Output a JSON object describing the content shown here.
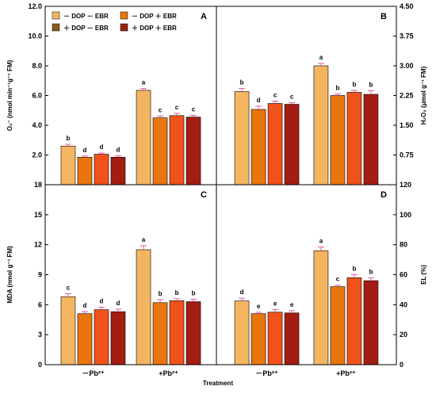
{
  "chart_data": [
    {
      "panel": "A",
      "type": "bar",
      "ylabel": "O₂⁻ (nmol min⁻¹g⁻¹ FM)",
      "ylim": [
        0,
        12
      ],
      "yticks": [
        "2.0",
        "4.0",
        "6.0",
        "8.0",
        "10.0",
        "12.0"
      ],
      "ytick_values": [
        2,
        4,
        6,
        8,
        10,
        12
      ],
      "categories": [
        "－Pb²⁺",
        "+Pb²⁺"
      ],
      "series": [
        {
          "name": "－DOP－EBR",
          "values": [
            2.6,
            6.35
          ],
          "errors": [
            0.12,
            0.12
          ],
          "letters": [
            "b",
            "a"
          ]
        },
        {
          "name": "－DOP＋EBR",
          "values": [
            1.85,
            4.5
          ],
          "errors": [
            0.08,
            0.12
          ],
          "letters": [
            "d",
            "c"
          ]
        },
        {
          "name": "＋DOP－EBR",
          "values": [
            2.05,
            4.65
          ],
          "errors": [
            0.08,
            0.15
          ],
          "letters": [
            "d",
            "c"
          ]
        },
        {
          "name": "＋DOP＋EBR",
          "values": [
            1.85,
            4.55
          ],
          "errors": [
            0.1,
            0.12
          ],
          "letters": [
            "d",
            "c"
          ]
        }
      ]
    },
    {
      "panel": "B",
      "type": "bar",
      "ylabel": "H₂O₂ (μmol g⁻¹ FM)",
      "ylim": [
        0,
        4.5
      ],
      "yticks": [
        "0.75",
        "1.50",
        "2.25",
        "3.00",
        "3.75",
        "4.50"
      ],
      "ytick_values": [
        0.75,
        1.5,
        2.25,
        3.0,
        3.75,
        4.5
      ],
      "categories": [
        "－Pb²⁺",
        "+Pb²⁺"
      ],
      "series": [
        {
          "name": "－DOP－EBR",
          "values": [
            2.35,
            3.0
          ],
          "errors": [
            0.08,
            0.06
          ],
          "letters": [
            "b",
            "a"
          ]
        },
        {
          "name": "－DOP＋EBR",
          "values": [
            1.9,
            2.25
          ],
          "errors": [
            0.08,
            0.04
          ],
          "letters": [
            "d",
            "b"
          ]
        },
        {
          "name": "＋DOP－EBR",
          "values": [
            2.05,
            2.33
          ],
          "errors": [
            0.06,
            0.05
          ],
          "letters": [
            "c",
            "b"
          ]
        },
        {
          "name": "＋DOP＋EBR",
          "values": [
            2.03,
            2.28
          ],
          "errors": [
            0.04,
            0.09
          ],
          "letters": [
            "c",
            "b"
          ]
        }
      ]
    },
    {
      "panel": "C",
      "type": "bar",
      "ylabel": "MDA (nmol g⁻¹ FM)",
      "ylim": [
        0,
        18
      ],
      "yticks": [
        "0",
        "3",
        "6",
        "9",
        "12",
        "15",
        "18"
      ],
      "ytick_values": [
        0,
        3,
        6,
        9,
        12,
        15,
        18
      ],
      "xlabel": "Treatment",
      "categories": [
        "－Pb²⁺",
        "+Pb²⁺"
      ],
      "series": [
        {
          "name": "－DOP－EBR",
          "values": [
            6.8,
            11.5
          ],
          "errors": [
            0.3,
            0.4
          ],
          "letters": [
            "c",
            "a"
          ]
        },
        {
          "name": "－DOP＋EBR",
          "values": [
            5.1,
            6.2
          ],
          "errors": [
            0.2,
            0.3
          ],
          "letters": [
            "d",
            "b"
          ]
        },
        {
          "name": "＋DOP－EBR",
          "values": [
            5.5,
            6.4
          ],
          "errors": [
            0.25,
            0.2
          ],
          "letters": [
            "d",
            "b"
          ]
        },
        {
          "name": "＋DOP＋EBR",
          "values": [
            5.3,
            6.3
          ],
          "errors": [
            0.25,
            0.25
          ],
          "letters": [
            "d",
            "b"
          ]
        }
      ]
    },
    {
      "panel": "D",
      "type": "bar",
      "ylabel": "EL (%)",
      "ylim": [
        0,
        120
      ],
      "yticks": [
        "0",
        "20",
        "40",
        "60",
        "80",
        "100",
        "120"
      ],
      "ytick_values": [
        0,
        20,
        40,
        60,
        80,
        100,
        120
      ],
      "categories": [
        "－Pb²⁺",
        "+Pb²⁺"
      ],
      "series": [
        {
          "name": "－DOP－EBR",
          "values": [
            42.5,
            76
          ],
          "errors": [
            1.8,
            2.5
          ],
          "letters": [
            "d",
            "a"
          ]
        },
        {
          "name": "－DOP＋EBR",
          "values": [
            34,
            52
          ],
          "errors": [
            1.0,
            1.0
          ],
          "letters": [
            "e",
            "c"
          ]
        },
        {
          "name": "＋DOP－EBR",
          "values": [
            35,
            58
          ],
          "errors": [
            1.8,
            2.0
          ],
          "letters": [
            "e",
            "b"
          ]
        },
        {
          "name": "＋DOP＋EBR",
          "values": [
            34.5,
            56
          ],
          "errors": [
            1.5,
            2.0
          ],
          "letters": [
            "e",
            "b"
          ]
        }
      ]
    }
  ],
  "legend": [
    {
      "label": "－ DOP － EBR",
      "color": "#F4B561"
    },
    {
      "label": "－ DOP ＋ EBR",
      "color": "#E8750E"
    },
    {
      "label": "＋ DOP － EBR",
      "color": "#8A5A19"
    },
    {
      "label": "＋ DOP ＋ EBR",
      "color": "#9B2314"
    }
  ],
  "series_colors": [
    "#F4B561",
    "#E8750E",
    "#F0521A",
    "#A41D12"
  ],
  "error_color": "#E85A9A",
  "xlabel": "Treatment"
}
